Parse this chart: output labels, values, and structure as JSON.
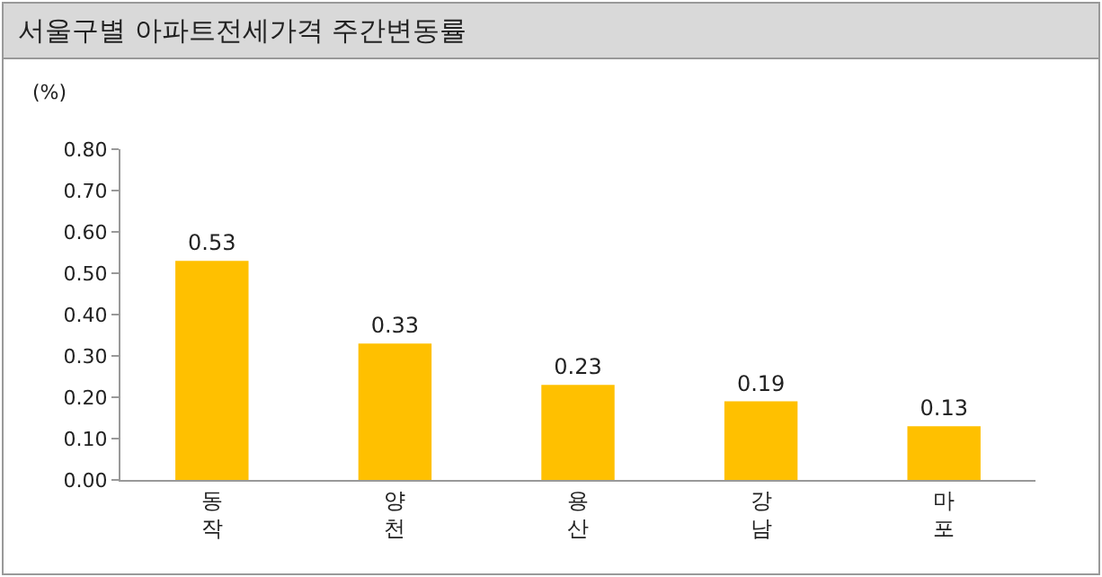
{
  "chart_data": {
    "type": "bar",
    "title": "서울구별 아파트전세가격 주간변동률",
    "ylabel": "(%)",
    "categories": [
      "동작",
      "양천",
      "용산",
      "강남",
      "마포"
    ],
    "values": [
      0.53,
      0.33,
      0.23,
      0.19,
      0.13
    ],
    "color": "#ffc000",
    "ylim": [
      0,
      0.8
    ],
    "yticks": [
      {
        "value": 0,
        "label": "0.00"
      },
      {
        "value": 0.1,
        "label": "0.10"
      },
      {
        "value": 0.2,
        "label": "0.20"
      },
      {
        "value": 0.3,
        "label": "0.30"
      },
      {
        "value": 0.4,
        "label": "0.40"
      },
      {
        "value": 0.5,
        "label": "0.50"
      },
      {
        "value": 0.6,
        "label": "0.60"
      },
      {
        "value": 0.7,
        "label": "0.70"
      },
      {
        "value": 0.8,
        "label": "0.80"
      }
    ],
    "data_labels": true,
    "grid": false,
    "legend": false
  }
}
